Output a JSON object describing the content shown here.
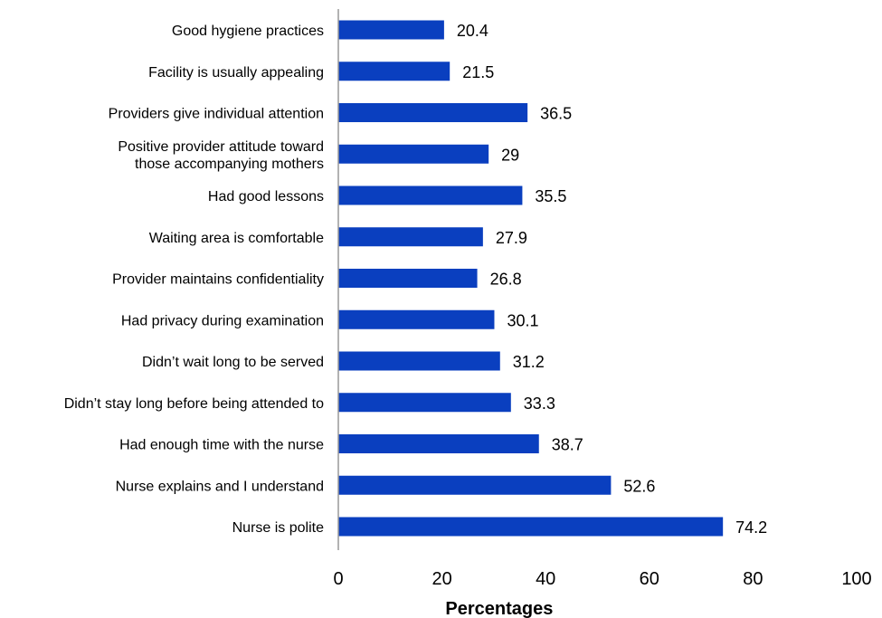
{
  "chart_data": {
    "type": "bar",
    "orientation": "horizontal",
    "categories": [
      "Good hygiene practices",
      "Facility is usually appealing",
      "Providers give individual attention",
      "Positive provider attitude toward\nthose accompanying mothers",
      "Had good lessons",
      "Waiting area is comfortable",
      "Provider maintains confidentiality",
      "Had privacy during examination",
      "Didn’t wait long to be served",
      "Didn’t stay long before being attended to",
      "Had enough time with the nurse",
      "Nurse explains and I understand",
      "Nurse is polite"
    ],
    "values": [
      20.4,
      21.5,
      36.5,
      29,
      35.5,
      27.9,
      26.8,
      30.1,
      31.2,
      33.3,
      38.7,
      52.6,
      74.2
    ],
    "value_labels": [
      "20.4",
      "21.5",
      "36.5",
      "29",
      "35.5",
      "27.9",
      "26.8",
      "30.1",
      "31.2",
      "33.3",
      "38.7",
      "52.6",
      "74.2"
    ],
    "title": "",
    "xlabel": "Percentages",
    "ylabel": "",
    "xlim": [
      0,
      100
    ],
    "xticks": [
      0,
      20,
      40,
      60,
      80,
      100
    ],
    "grid": false,
    "legend": "none",
    "bar_color": "#0a3fbf"
  }
}
